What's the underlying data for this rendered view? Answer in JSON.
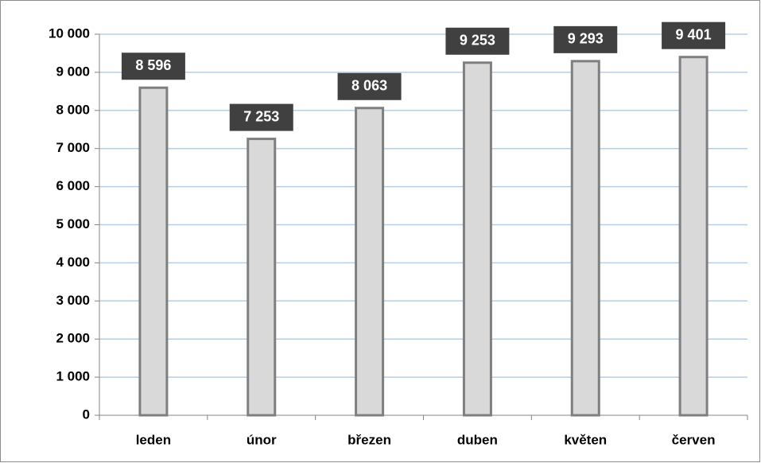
{
  "chart_data": {
    "type": "bar",
    "categories": [
      "leden",
      "únor",
      "březen",
      "duben",
      "květen",
      "červen"
    ],
    "values": [
      8596,
      7253,
      8063,
      9253,
      9293,
      9401
    ],
    "value_labels": [
      "8 596",
      "7 253",
      "8 063",
      "9 253",
      "9 293",
      "9 401"
    ],
    "color": "#d9d9d9",
    "ylim": [
      0,
      10000
    ],
    "yticks": [
      0,
      {
        "value": 1000,
        "label": "1 000"
      },
      {
        "value": 2000,
        "label": "2 000"
      },
      {
        "value": 3000,
        "label": "3 000"
      },
      {
        "value": 4000,
        "label": "4 000"
      },
      {
        "value": 5000,
        "label": "5 000"
      },
      {
        "value": 6000,
        "label": "6 000"
      },
      {
        "value": 7000,
        "label": "7 000"
      },
      {
        "value": 8000,
        "label": "8 000"
      },
      {
        "value": 9000,
        "label": "9 000"
      },
      {
        "value": 10000,
        "label": "10 000"
      }
    ],
    "grid": true
  }
}
